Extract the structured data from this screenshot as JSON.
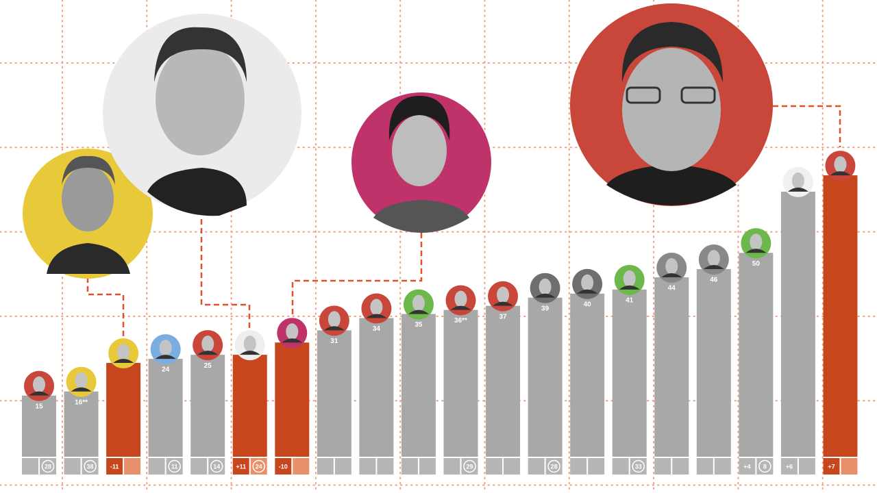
{
  "chart_data": {
    "type": "bar",
    "values": [
      15,
      16,
      23,
      24,
      25,
      25,
      28,
      31,
      34,
      35,
      36,
      37,
      39,
      40,
      41,
      44,
      46,
      50,
      65,
      69
    ],
    "value_labels": [
      "15",
      "16**",
      null,
      "24",
      "25",
      null,
      null,
      "31",
      "34",
      "35",
      "36**",
      "37",
      "39",
      "40",
      "41",
      "44",
      "46",
      "50",
      null,
      null
    ],
    "colors": [
      "#a8a8a8",
      "#a8a8a8",
      "#c8461e",
      "#a8a8a8",
      "#a8a8a8",
      "#c8461e",
      "#c8461e",
      "#a8a8a8",
      "#a8a8a8",
      "#a8a8a8",
      "#a8a8a8",
      "#a8a8a8",
      "#a8a8a8",
      "#a8a8a8",
      "#a8a8a8",
      "#a8a8a8",
      "#a8a8a8",
      "#a8a8a8",
      "#a8a8a8",
      "#c8461e"
    ],
    "avatar_colors": [
      "#c8463a",
      "#e8c93a",
      "#e8c93a",
      "#7aaee0",
      "#c8463a",
      "#eeeeee",
      "#c0326a",
      "#c8463a",
      "#c8463a",
      "#6cb84a",
      "#c8463a",
      "#c8463a",
      "#6e6e6e",
      "#6e6e6e",
      "#6cb84a",
      "#888888",
      "#888888",
      "#6cb84a",
      "#f0f0f0",
      "#c8463a"
    ],
    "changes": [
      null,
      null,
      "-11",
      null,
      null,
      "+11",
      "-10",
      null,
      null,
      null,
      null,
      null,
      null,
      null,
      null,
      null,
      null,
      "+4",
      "+6",
      "+7"
    ],
    "badges": [
      "28",
      "38",
      null,
      "11",
      "14",
      "24",
      null,
      null,
      null,
      null,
      "29",
      null,
      "28",
      null,
      "33",
      null,
      null,
      "8",
      null,
      null
    ],
    "ylim": [
      0,
      112
    ]
  }
}
